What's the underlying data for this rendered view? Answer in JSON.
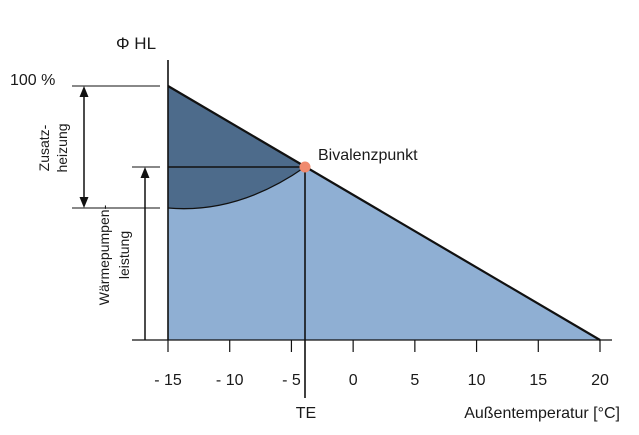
{
  "diagram": {
    "y_axis_label": "Φ HL",
    "y_max_label": "100 %",
    "bivalence_label": "Bivalenzpunkt",
    "te_label": "TE",
    "x_axis_label": "Außentemperatur [°C]",
    "x_ticks": [
      "- 15",
      "- 10",
      "- 5",
      "0",
      "5",
      "10",
      "15",
      "20"
    ],
    "zusatzheizung_lines": [
      "Zusatz-",
      "heizung"
    ],
    "waermepumpe_lines": [
      "Wärmepumpen-",
      "leistung"
    ],
    "colors": {
      "light_area": "#8fafd3",
      "dark_area": "#4d6b8b",
      "bivalence_point": "#f08a6e",
      "line": "#111111"
    }
  },
  "chart_data": {
    "type": "area",
    "x_range": [
      -15,
      20
    ],
    "x_ticks": [
      -15,
      -10,
      -5,
      0,
      5,
      10,
      15,
      20
    ],
    "bivalence_x": -4,
    "heat_load": {
      "x": [
        -15,
        20
      ],
      "y": [
        100,
        0
      ]
    },
    "annotations": [
      "Bivalenzpunkt",
      "TE",
      "Zusatz-heizung",
      "Wärmepumpen-leistung"
    ]
  }
}
